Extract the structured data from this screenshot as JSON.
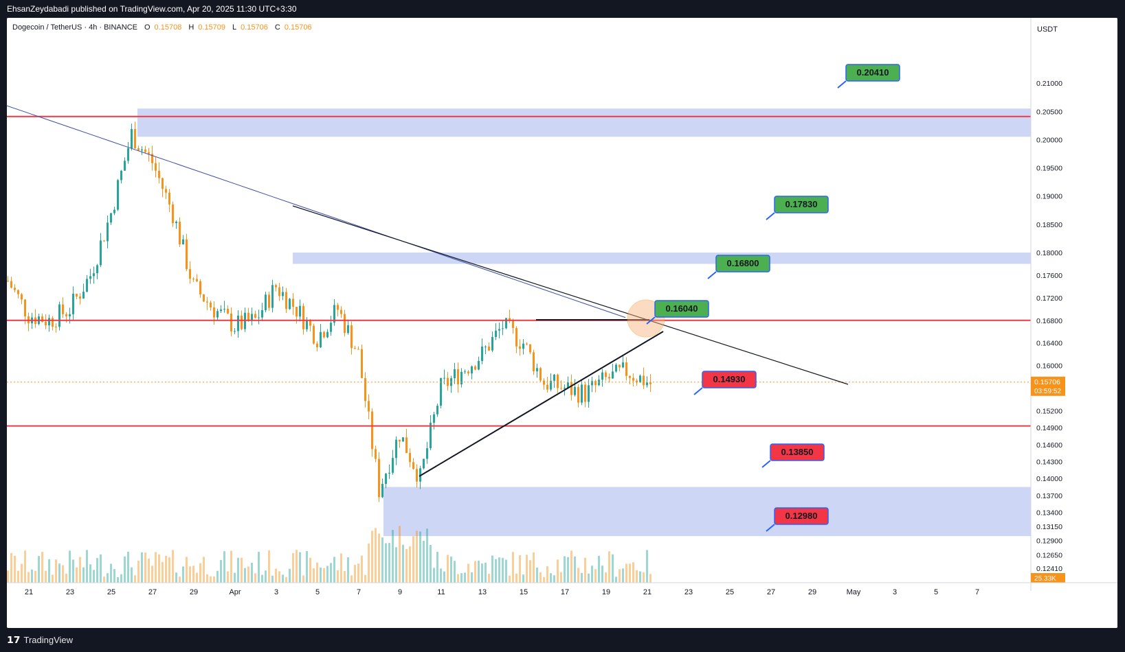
{
  "header": {
    "publisher_text": "EhsanZeydabadi published on TradingView.com, Apr 20, 2025 11:30 UTC+3:30"
  },
  "footer": {
    "brand": "TradingView",
    "logo_icon": "tradingview-logo-icon"
  },
  "legend": {
    "symbol": "Dogecoin / TetherUS · 4h · BINANCE",
    "open_label": "O",
    "open": "0.15708",
    "high_label": "H",
    "high": "0.15709",
    "low_label": "L",
    "low": "0.15706",
    "close_label": "C",
    "close": "0.15706"
  },
  "colors": {
    "up": "#26a69a",
    "down": "#f7931a",
    "level_line": "#f23645",
    "zone": "#c5cff5",
    "ma": "#3b4ea8",
    "green_label": "#4caf50",
    "red_label": "#f23645"
  },
  "chart_data": {
    "type": "line",
    "currency": "USDT",
    "ylim": [
      0.1224,
      0.215
    ],
    "y_ticks": [
      "0.21000",
      "0.20500",
      "0.20000",
      "0.19500",
      "0.19000",
      "0.18500",
      "0.18000",
      "0.17600",
      "0.17200",
      "0.16800",
      "0.16400",
      "0.16000",
      "0.15200",
      "0.14900",
      "0.14600",
      "0.14300",
      "0.14000",
      "0.13700",
      "0.13400",
      "0.13150",
      "0.12900",
      "0.12650",
      "0.12410"
    ],
    "x_ticks": [
      "21",
      "23",
      "25",
      "27",
      "29",
      "Apr",
      "3",
      "5",
      "7",
      "9",
      "11",
      "13",
      "15",
      "17",
      "19",
      "21",
      "23",
      "25",
      "27",
      "29",
      "May",
      "3",
      "5",
      "7"
    ],
    "last_price": "0.15706",
    "countdown": "03:59:52",
    "volume_label": "25.33K",
    "horizontal_levels": [
      0.2041,
      0.168,
      0.1493
    ],
    "zones": [
      [
        0.2005,
        0.2055
      ],
      [
        0.178,
        0.18
      ],
      [
        0.1298,
        0.1385
      ]
    ],
    "labels": [
      {
        "text": "0.20410",
        "color": "green"
      },
      {
        "text": "0.17830",
        "color": "green"
      },
      {
        "text": "0.16800",
        "color": "green"
      },
      {
        "text": "0.16040",
        "color": "green"
      },
      {
        "text": "0.14930",
        "color": "red"
      },
      {
        "text": "0.13850",
        "color": "red"
      },
      {
        "text": "0.12980",
        "color": "red"
      }
    ],
    "price_path": [
      [
        "Mar 20",
        0.175
      ],
      [
        "Mar 21",
        0.169
      ],
      [
        "Mar 22",
        0.168
      ],
      [
        "Mar 23",
        0.17
      ],
      [
        "Mar 24",
        0.176
      ],
      [
        "Mar 25",
        0.187
      ],
      [
        "Mar 26",
        0.201
      ],
      [
        "Mar 27",
        0.196
      ],
      [
        "Mar 28",
        0.187
      ],
      [
        "Mar 29",
        0.174
      ],
      [
        "Mar 30",
        0.17
      ],
      [
        "Mar 31",
        0.167
      ],
      [
        "Apr 1",
        0.168
      ],
      [
        "Apr 2",
        0.174
      ],
      [
        "Apr 3",
        0.17
      ],
      [
        "Apr 4",
        0.165
      ],
      [
        "Apr 5",
        0.17
      ],
      [
        "Apr 6",
        0.162
      ],
      [
        "Apr 7",
        0.138
      ],
      [
        "Apr 8",
        0.148
      ],
      [
        "Apr 9",
        0.14
      ],
      [
        "Apr 10",
        0.156
      ],
      [
        "Apr 11",
        0.159
      ],
      [
        "Apr 12",
        0.162
      ],
      [
        "Apr 13",
        0.167
      ],
      [
        "Apr 14",
        0.164
      ],
      [
        "Apr 15",
        0.157
      ],
      [
        "Apr 16",
        0.156
      ],
      [
        "Apr 17",
        0.155
      ],
      [
        "Apr 18",
        0.1575
      ],
      [
        "Apr 19",
        0.159
      ],
      [
        "Apr 20",
        0.1571
      ]
    ]
  }
}
